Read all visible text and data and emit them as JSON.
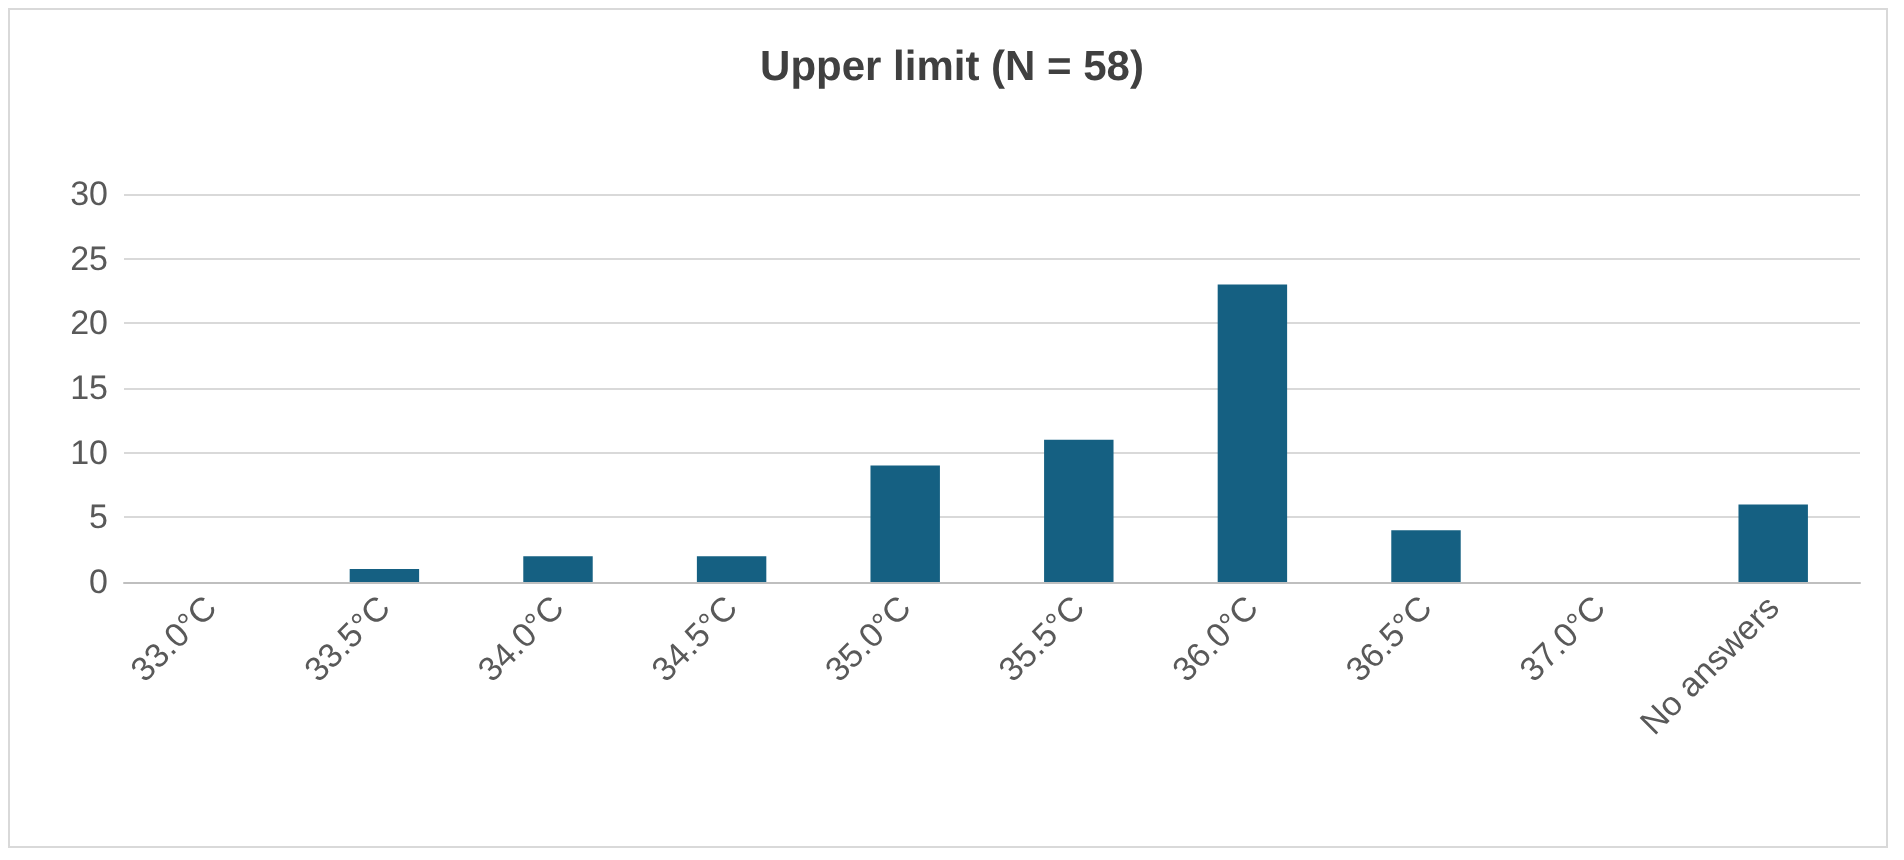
{
  "chart_data": {
    "type": "bar",
    "title": "Upper limit (N = 58)",
    "categories": [
      "33.0°C",
      "33.5°C",
      "34.0°C",
      "34.5°C",
      "35.0°C",
      "35.5°C",
      "36.0°C",
      "36.5°C",
      "37.0°C",
      "No answers"
    ],
    "values": [
      0,
      1,
      2,
      2,
      9,
      11,
      23,
      4,
      0,
      6
    ],
    "color": "#156082",
    "ylim": [
      0,
      30
    ],
    "yticks": [
      0,
      5,
      10,
      15,
      20,
      25,
      30
    ],
    "grid": "y"
  }
}
